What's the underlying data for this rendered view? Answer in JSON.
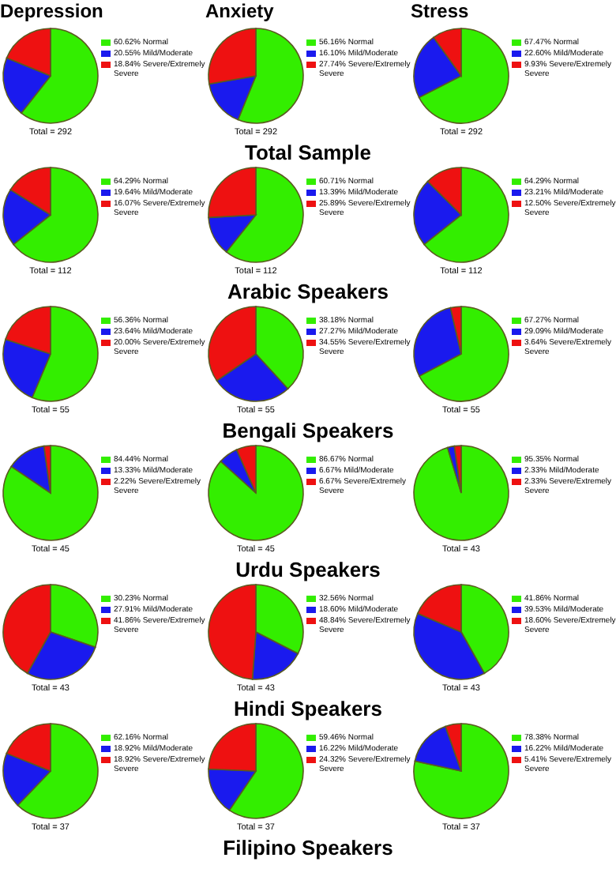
{
  "chart_data": [
    {
      "type": "pie",
      "title": "Depression",
      "categories": [
        "Normal",
        "Mild/Moderate",
        "Severe/Extremely Severe"
      ],
      "values": [
        60.62,
        20.55,
        18.84
      ],
      "value_labels": [
        "60.62%",
        "20.55%",
        "18.84%"
      ],
      "colors": [
        "#33ee00",
        "#1a1aee",
        "#ee1111"
      ],
      "legend": "right",
      "annotations": [
        "Total = 292"
      ]
    },
    {
      "type": "pie",
      "title": "Anxiety",
      "categories": [
        "Normal",
        "Mild/Moderate",
        "Severe/Extremely Severe"
      ],
      "values": [
        56.16,
        16.1,
        27.74
      ],
      "value_labels": [
        "56.16%",
        "16.10%",
        "27.74%"
      ],
      "colors": [
        "#33ee00",
        "#1a1aee",
        "#ee1111"
      ],
      "legend": "right",
      "annotations": [
        "Total = 292",
        "Total Sample"
      ]
    },
    {
      "type": "pie",
      "title": "Stress",
      "categories": [
        "Normal",
        "Mild/Moderate",
        "Severe/Extremely Severe"
      ],
      "values": [
        67.47,
        22.6,
        9.93
      ],
      "value_labels": [
        "67.47%",
        "22.60%",
        "9.93%"
      ],
      "colors": [
        "#33ee00",
        "#1a1aee",
        "#ee1111"
      ],
      "legend": "right",
      "annotations": [
        "Total = 292"
      ]
    },
    {
      "type": "pie",
      "categories": [
        "Normal",
        "Mild/Moderate",
        "Severe/Extremely Severe"
      ],
      "values": [
        64.29,
        19.64,
        16.07
      ],
      "value_labels": [
        "64.29%",
        "19.64%",
        "16.07%"
      ],
      "colors": [
        "#33ee00",
        "#1a1aee",
        "#ee1111"
      ],
      "legend": "right",
      "annotations": [
        "Total = 112"
      ]
    },
    {
      "type": "pie",
      "categories": [
        "Normal",
        "Mild/Moderate",
        "Severe/Extremely Severe"
      ],
      "values": [
        60.71,
        13.39,
        25.89
      ],
      "value_labels": [
        "60.71%",
        "13.39%",
        "25.89%"
      ],
      "colors": [
        "#33ee00",
        "#1a1aee",
        "#ee1111"
      ],
      "legend": "right",
      "annotations": [
        "Total = 112",
        "Arabic Speakers"
      ]
    },
    {
      "type": "pie",
      "categories": [
        "Normal",
        "Mild/Moderate",
        "Severe/Extremely Severe"
      ],
      "values": [
        64.29,
        23.21,
        12.5
      ],
      "value_labels": [
        "64.29%",
        "23.21%",
        "12.50%"
      ],
      "colors": [
        "#33ee00",
        "#1a1aee",
        "#ee1111"
      ],
      "legend": "right",
      "annotations": [
        "Total = 112"
      ]
    },
    {
      "type": "pie",
      "categories": [
        "Normal",
        "Mild/Moderate",
        "Severe/Extremely Severe"
      ],
      "values": [
        56.36,
        23.64,
        20.0
      ],
      "value_labels": [
        "56.36%",
        "23.64%",
        "20.00%"
      ],
      "colors": [
        "#33ee00",
        "#1a1aee",
        "#ee1111"
      ],
      "legend": "right",
      "annotations": [
        "Total = 55"
      ]
    },
    {
      "type": "pie",
      "categories": [
        "Normal",
        "Mild/Moderate",
        "Severe/Extremely Severe"
      ],
      "values": [
        38.18,
        27.27,
        34.55
      ],
      "value_labels": [
        "38.18%",
        "27.27%",
        "34.55%"
      ],
      "colors": [
        "#33ee00",
        "#1a1aee",
        "#ee1111"
      ],
      "legend": "right",
      "annotations": [
        "Total = 55",
        "Bengali Speakers"
      ]
    },
    {
      "type": "pie",
      "categories": [
        "Normal",
        "Mild/Moderate",
        "Severe/Extremely Severe"
      ],
      "values": [
        67.27,
        29.09,
        3.64
      ],
      "value_labels": [
        "67.27%",
        "29.09%",
        "3.64%"
      ],
      "colors": [
        "#33ee00",
        "#1a1aee",
        "#ee1111"
      ],
      "legend": "right",
      "annotations": [
        "Total = 55"
      ]
    },
    {
      "type": "pie",
      "categories": [
        "Normal",
        "Mild/Moderate",
        "Severe/Extremely Severe"
      ],
      "values": [
        84.44,
        13.33,
        2.22
      ],
      "value_labels": [
        "84.44%",
        "13.33%",
        "2.22%"
      ],
      "colors": [
        "#33ee00",
        "#1a1aee",
        "#ee1111"
      ],
      "legend": "right",
      "annotations": [
        "Total = 45"
      ]
    },
    {
      "type": "pie",
      "categories": [
        "Normal",
        "Mild/Moderate",
        "Severe/Extremely Severe"
      ],
      "values": [
        86.67,
        6.67,
        6.67
      ],
      "value_labels": [
        "86.67%",
        "6.67%",
        "6.67%"
      ],
      "colors": [
        "#33ee00",
        "#1a1aee",
        "#ee1111"
      ],
      "legend": "right",
      "annotations": [
        "Total = 45",
        "Urdu Speakers"
      ]
    },
    {
      "type": "pie",
      "categories": [
        "Normal",
        "Mild/Moderate",
        "Severe/Extremely Severe"
      ],
      "values": [
        95.35,
        2.33,
        2.33
      ],
      "value_labels": [
        "95.35%",
        "2.33%",
        "2.33%"
      ],
      "colors": [
        "#33ee00",
        "#1a1aee",
        "#ee1111"
      ],
      "legend": "right",
      "annotations": [
        "Total = 43"
      ]
    },
    {
      "type": "pie",
      "categories": [
        "Normal",
        "Mild/Moderate",
        "Severe/Extremely Severe"
      ],
      "values": [
        30.23,
        27.91,
        41.86
      ],
      "value_labels": [
        "30.23%",
        "27.91%",
        "41.86%"
      ],
      "colors": [
        "#33ee00",
        "#1a1aee",
        "#ee1111"
      ],
      "legend": "right",
      "annotations": [
        "Total = 43"
      ]
    },
    {
      "type": "pie",
      "categories": [
        "Normal",
        "Mild/Moderate",
        "Severe/Extremely Severe"
      ],
      "values": [
        32.56,
        18.6,
        48.84
      ],
      "value_labels": [
        "32.56%",
        "18.60%",
        "48.84%"
      ],
      "colors": [
        "#33ee00",
        "#1a1aee",
        "#ee1111"
      ],
      "legend": "right",
      "annotations": [
        "Total = 43",
        "Hindi Speakers"
      ]
    },
    {
      "type": "pie",
      "categories": [
        "Normal",
        "Mild/Moderate",
        "Severe/Extremely Severe"
      ],
      "values": [
        41.86,
        39.53,
        18.6
      ],
      "value_labels": [
        "41.86%",
        "39.53%",
        "18.60%"
      ],
      "colors": [
        "#33ee00",
        "#1a1aee",
        "#ee1111"
      ],
      "legend": "right",
      "annotations": [
        "Total = 43"
      ]
    },
    {
      "type": "pie",
      "categories": [
        "Normal",
        "Mild/Moderate",
        "Severe/Extremely Severe"
      ],
      "values": [
        62.16,
        18.92,
        18.92
      ],
      "value_labels": [
        "62.16%",
        "18.92%",
        "18.92%"
      ],
      "colors": [
        "#33ee00",
        "#1a1aee",
        "#ee1111"
      ],
      "legend": "right",
      "annotations": [
        "Total = 37"
      ]
    },
    {
      "type": "pie",
      "categories": [
        "Normal",
        "Mild/Moderate",
        "Severe/Extremely Severe"
      ],
      "values": [
        59.46,
        16.22,
        24.32
      ],
      "value_labels": [
        "59.46%",
        "16.22%",
        "24.32%"
      ],
      "colors": [
        "#33ee00",
        "#1a1aee",
        "#ee1111"
      ],
      "legend": "right",
      "annotations": [
        "Total = 37",
        "Filipino Speakers"
      ]
    },
    {
      "type": "pie",
      "categories": [
        "Normal",
        "Mild/Moderate",
        "Severe/Extremely Severe"
      ],
      "values": [
        78.38,
        16.22,
        5.41
      ],
      "value_labels": [
        "78.38%",
        "16.22%",
        "5.41%"
      ],
      "colors": [
        "#33ee00",
        "#1a1aee",
        "#ee1111"
      ],
      "legend": "right",
      "annotations": [
        "Total = 37"
      ]
    }
  ]
}
